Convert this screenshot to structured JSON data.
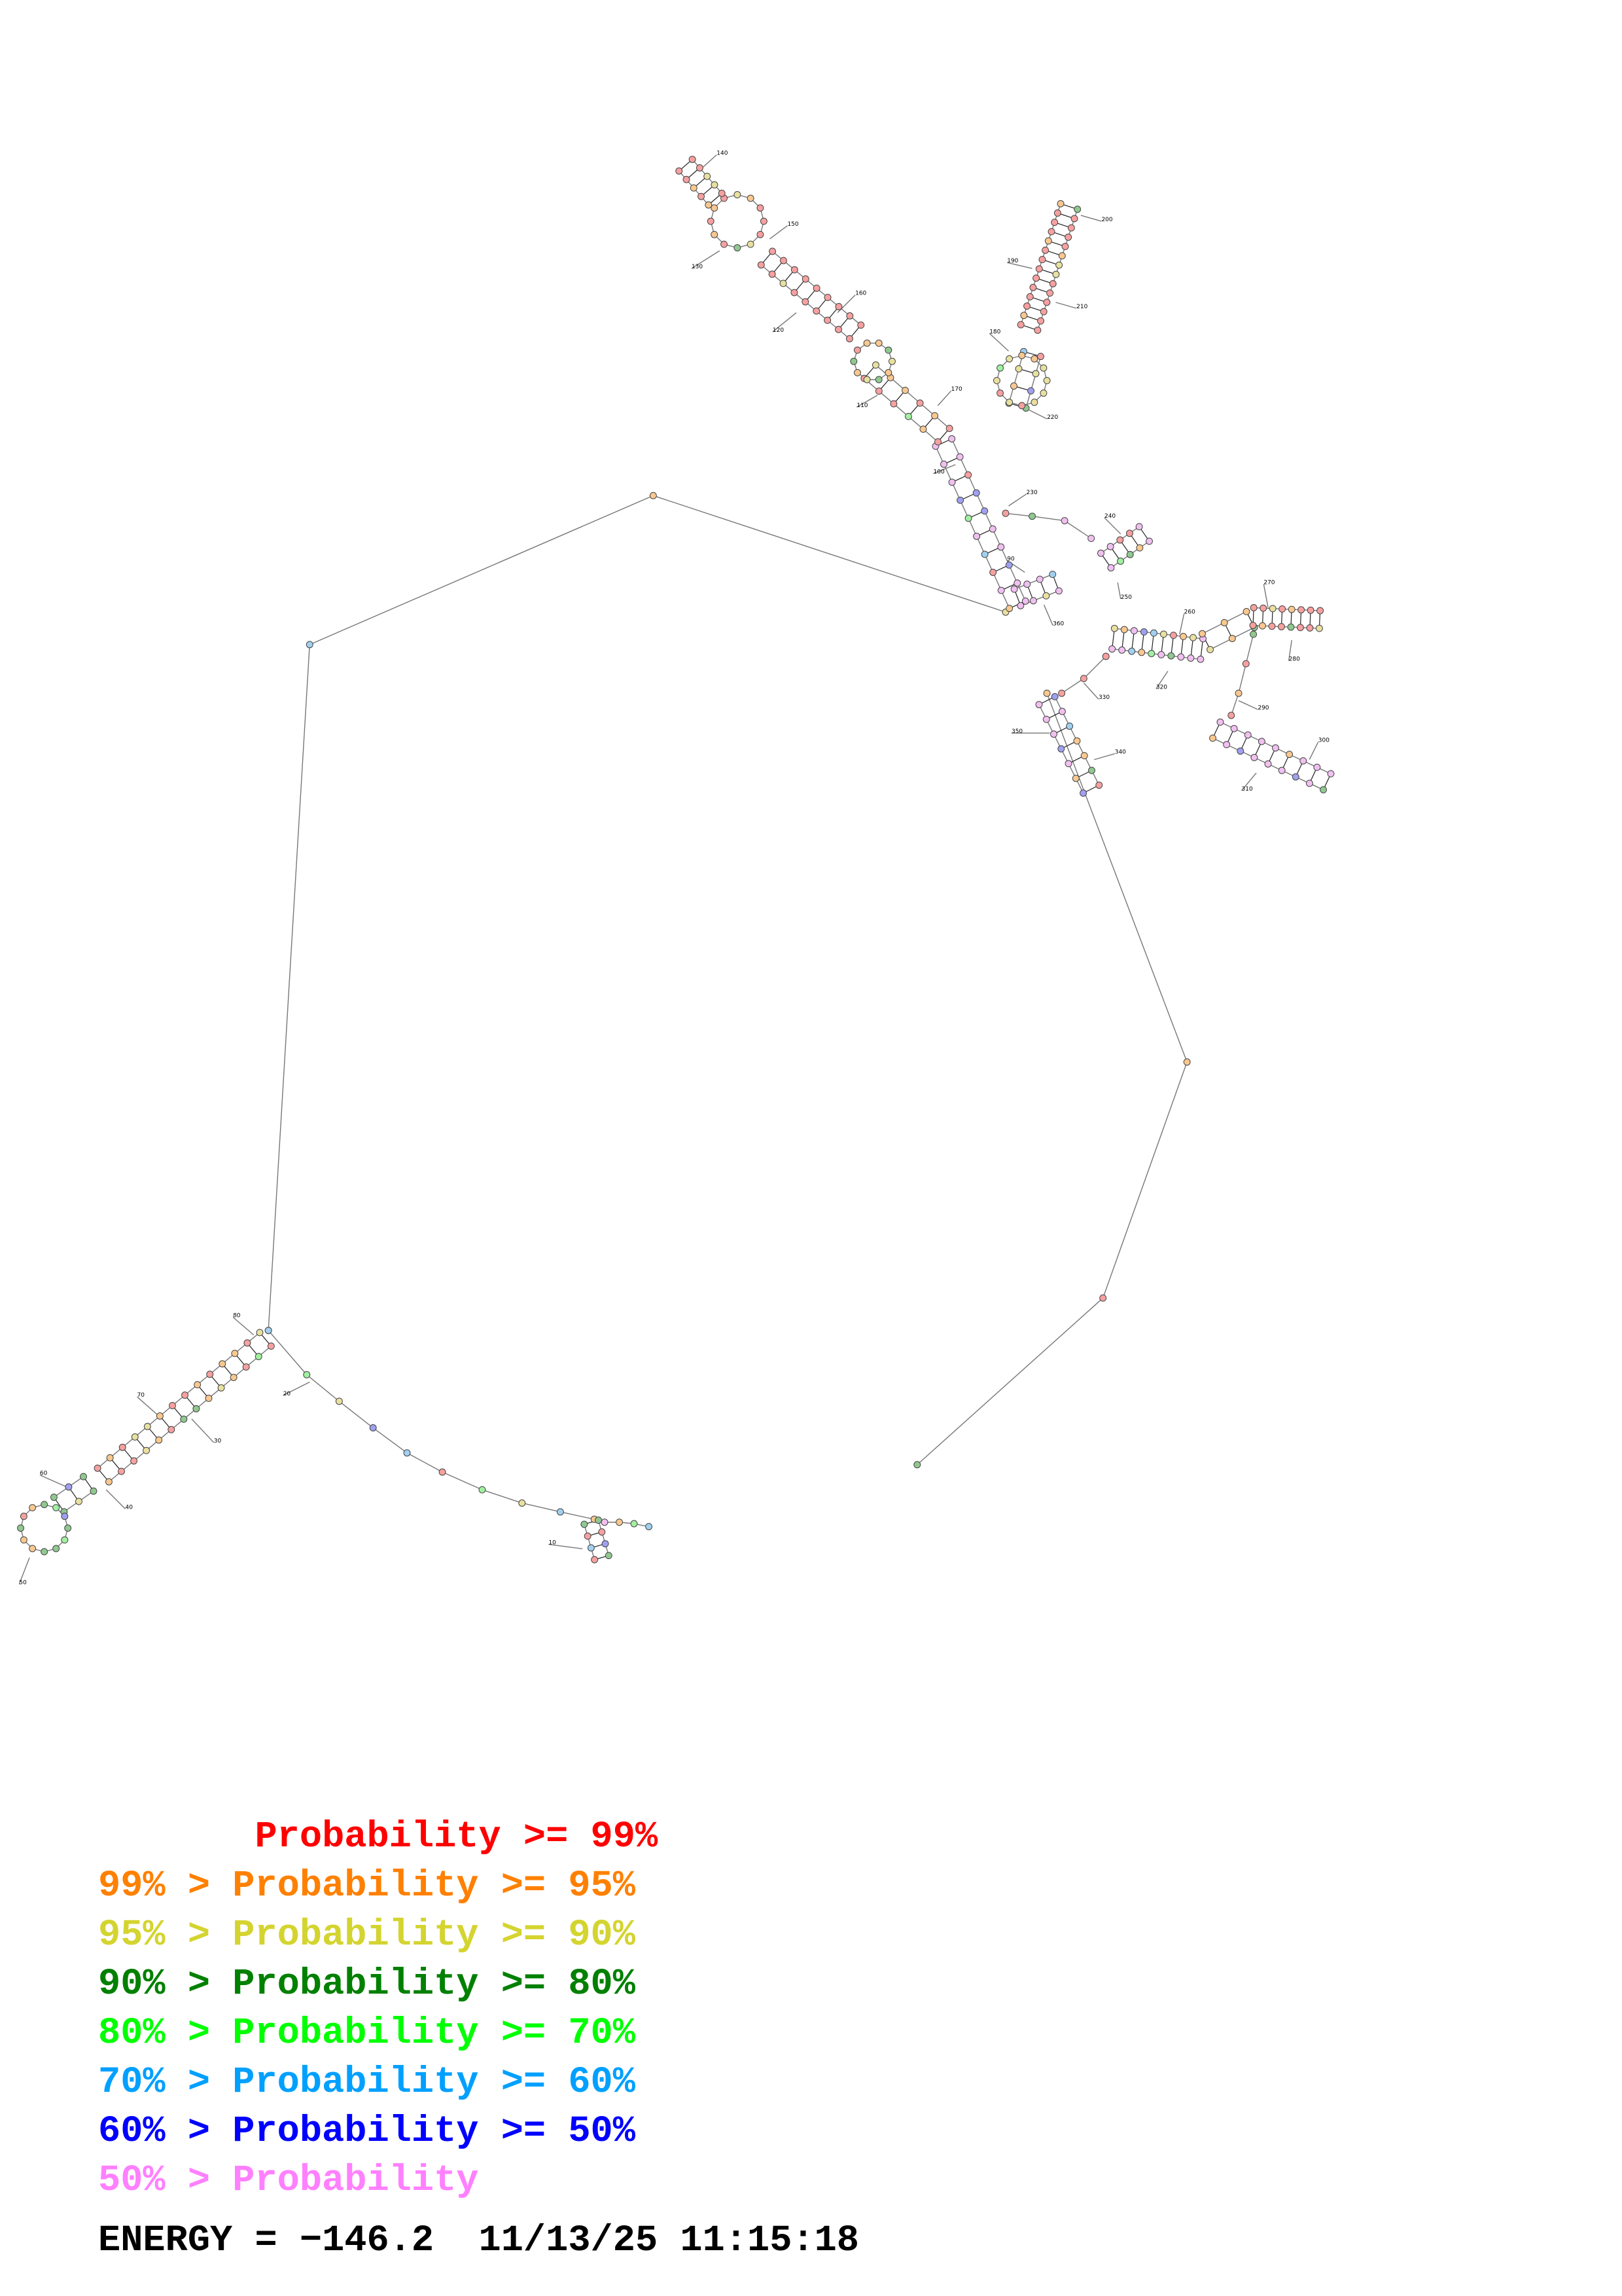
{
  "legend": [
    {
      "prefix": "       ",
      "text": "Probability >= 99%",
      "color": "#ff0000"
    },
    {
      "prefix": "99% > ",
      "text": "Probability >= 95%",
      "color": "#ff8000"
    },
    {
      "prefix": "95% > ",
      "text": "Probability >= 90%",
      "color": "#d4d430"
    },
    {
      "prefix": "90% > ",
      "text": "Probability >= 80%",
      "color": "#008000"
    },
    {
      "prefix": "80% > ",
      "text": "Probability >= 70%",
      "color": "#00ff00"
    },
    {
      "prefix": "70% > ",
      "text": "Probability >= 60%",
      "color": "#00a0ff"
    },
    {
      "prefix": "60% > ",
      "text": "Probability >= 50%",
      "color": "#0000ff"
    },
    {
      "prefix": "50% > ",
      "text": "Probability",
      "color": "#ff80ff"
    }
  ],
  "energy": {
    "label": "ENERGY = ",
    "value": "−146.2",
    "datetime": "11/13/25 11:15:18"
  },
  "position_labels": [
    "10",
    "20",
    "30",
    "40",
    "50",
    "60",
    "70",
    "80",
    "90",
    "100",
    "110",
    "120",
    "130",
    "140",
    "150",
    "160",
    "170",
    "180",
    "190",
    "200",
    "210",
    "220",
    "230",
    "240",
    "250",
    "260",
    "270",
    "280",
    "290",
    "300",
    "310",
    "320",
    "330",
    "340",
    "350",
    "360"
  ],
  "node_colors": {
    "p99": "#f6a0a0",
    "p95": "#f8c890",
    "p90": "#e8e0a0",
    "p80": "#90c890",
    "p70": "#a0f0a0",
    "p60": "#a0d0f0",
    "p50": "#a0a0f0",
    "p0": "#f0c0f0"
  }
}
